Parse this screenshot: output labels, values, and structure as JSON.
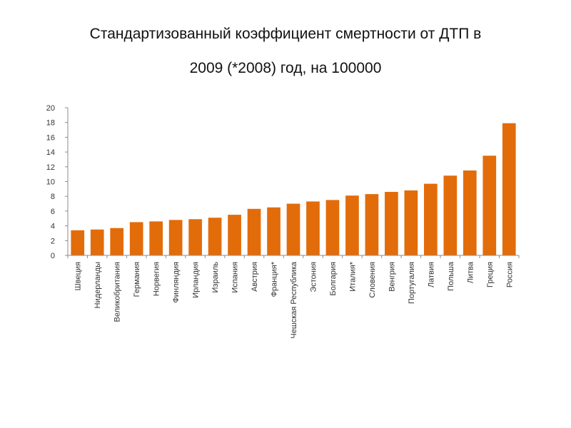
{
  "slide": {
    "title_line_1": "Стандартизованный коэффициент смертности от ДТП в",
    "title_line_2": "2009 (*2008) год, на 100000"
  },
  "chart_data": {
    "type": "bar",
    "title": "",
    "xlabel": "",
    "ylabel": "",
    "ylim": [
      0,
      20
    ],
    "yticks": [
      0,
      2,
      4,
      6,
      8,
      10,
      12,
      14,
      16,
      18,
      20
    ],
    "grid": false,
    "bar_color": "#E36C0A",
    "categories": [
      "Швеция",
      "Нидерланды",
      "Великобритания",
      "Германия",
      "Норвегия",
      "Финляндия",
      "Ирландия",
      "Израиль",
      "Испания",
      "Австрия",
      "Франция*",
      "Чешская Республика",
      "Эстония",
      "Болгария",
      "Италия*",
      "Словения",
      "Венгрия",
      "Португалия",
      "Латвия",
      "Польша",
      "Литва",
      "Греция",
      "Россия"
    ],
    "values": [
      3.4,
      3.5,
      3.7,
      4.5,
      4.6,
      4.8,
      4.9,
      5.1,
      5.5,
      6.3,
      6.5,
      7.0,
      7.3,
      7.5,
      8.1,
      8.3,
      8.6,
      8.8,
      9.7,
      10.8,
      11.5,
      13.5,
      17.9
    ]
  }
}
